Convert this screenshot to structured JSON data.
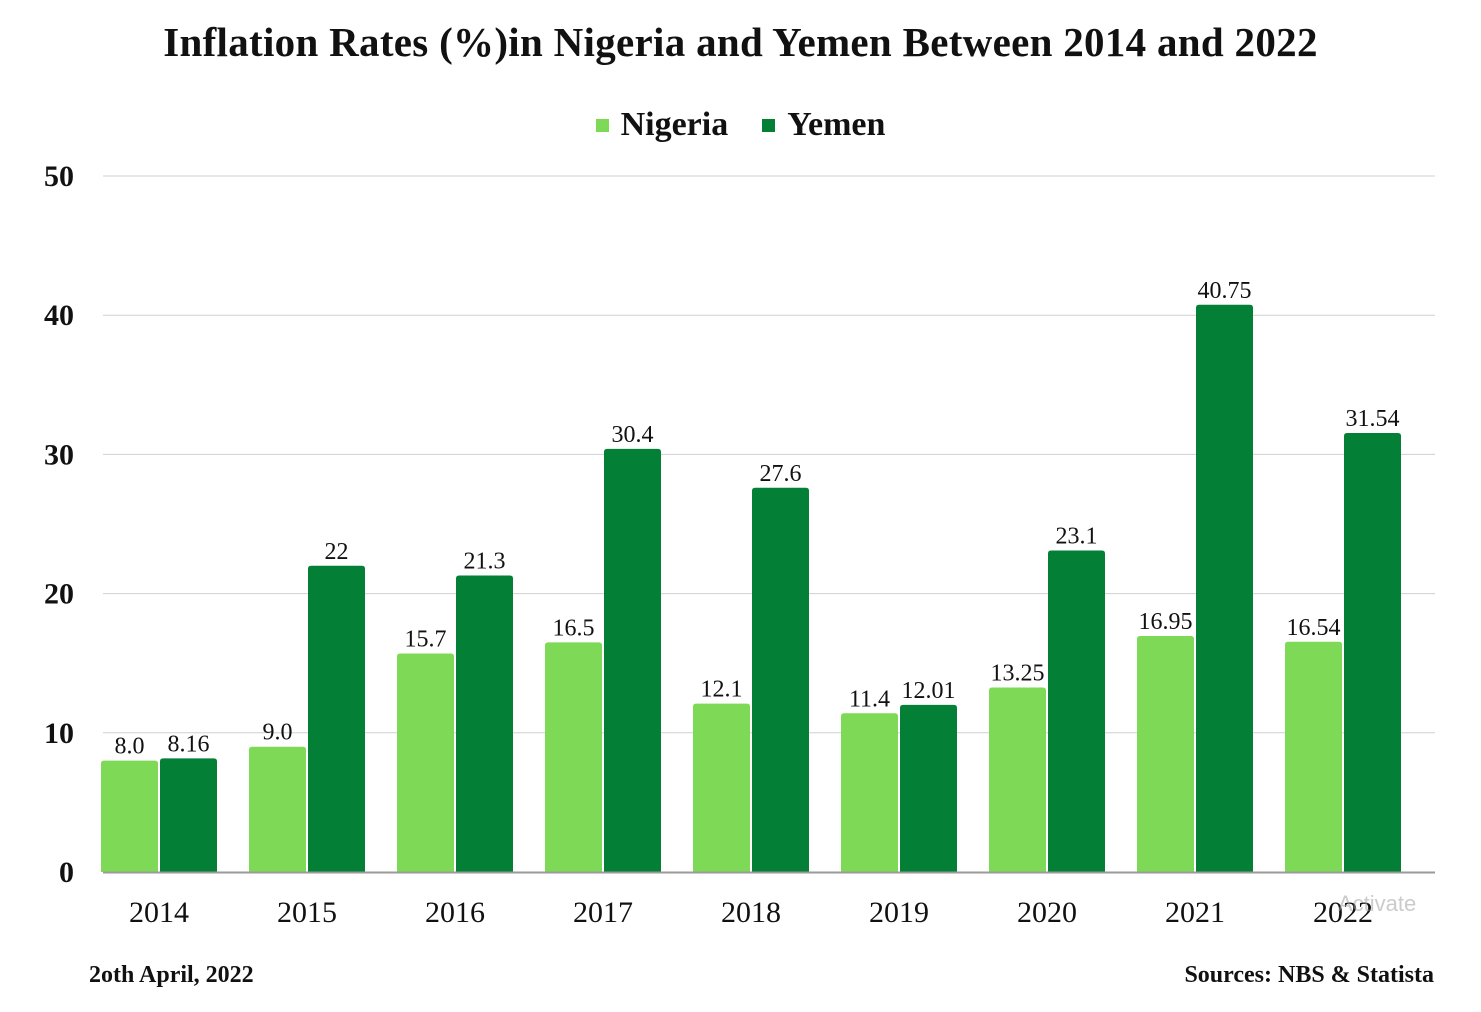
{
  "chart_data": {
    "type": "bar",
    "title": "Inflation Rates (%)in Nigeria and Yemen Between 2014 and 2022",
    "xlabel": "",
    "ylabel": "",
    "categories": [
      "2014",
      "2015",
      "2016",
      "2017",
      "2018",
      "2019",
      "2020",
      "2021",
      "2022"
    ],
    "series": [
      {
        "name": "Nigeria",
        "color": "#7ed957",
        "values": [
          8.0,
          9.0,
          15.7,
          16.5,
          12.1,
          11.4,
          13.25,
          16.95,
          16.54
        ],
        "labels": [
          "8.0",
          "9.0",
          "15.7",
          "16.5",
          "12.1",
          "11.4",
          "13.25",
          "16.95",
          "16.54"
        ]
      },
      {
        "name": "Yemen",
        "color": "#037f36",
        "values": [
          8.16,
          22,
          21.3,
          30.4,
          27.6,
          12.01,
          23.1,
          40.75,
          31.54
        ],
        "labels": [
          "8.16",
          "22",
          "21.3",
          "30.4",
          "27.6",
          "12.01",
          "23.1",
          "40.75",
          "31.54"
        ]
      }
    ],
    "ylim": [
      0,
      50
    ],
    "yticks": [
      "0",
      "10",
      "20",
      "30",
      "40",
      "50"
    ],
    "grid": true,
    "legend_position": "top-center"
  },
  "footer": {
    "date": "2oth April, 2022",
    "sources": "Sources: NBS & Statista"
  },
  "watermark": "Activate"
}
